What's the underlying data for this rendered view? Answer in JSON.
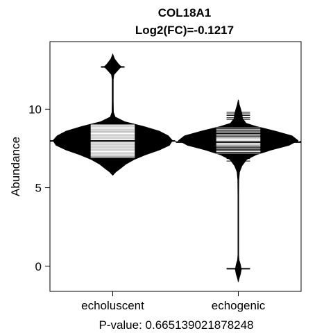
{
  "chart_data": {
    "type": "beanplot",
    "title": "COL18A1",
    "subtitle": "Log2(FC)=-0.1217",
    "ylabel": "Abundance",
    "xlabel": "P-value: 0.665139021878248",
    "ylim": [
      -1.6,
      14.3
    ],
    "yticks": [
      0,
      5,
      10
    ],
    "grid": false,
    "overall_mean": 7.95,
    "categories": [
      "echoluscent",
      "echogenic"
    ],
    "beans": [
      {
        "category": "echoluscent",
        "mean": 7.98,
        "color": "#000000",
        "density": [
          [
            5.8,
            0.0
          ],
          [
            6.0,
            0.05
          ],
          [
            6.2,
            0.12
          ],
          [
            6.5,
            0.22
          ],
          [
            6.8,
            0.36
          ],
          [
            7.1,
            0.55
          ],
          [
            7.4,
            0.78
          ],
          [
            7.7,
            0.95
          ],
          [
            8.0,
            1.0
          ],
          [
            8.3,
            0.93
          ],
          [
            8.6,
            0.78
          ],
          [
            8.9,
            0.52
          ],
          [
            9.2,
            0.2
          ],
          [
            9.5,
            0.04
          ],
          [
            9.8,
            0.012
          ],
          [
            10.5,
            0.008
          ],
          [
            11.2,
            0.008
          ],
          [
            11.9,
            0.008
          ],
          [
            12.2,
            0.02
          ],
          [
            12.5,
            0.09
          ],
          [
            12.7,
            0.14
          ],
          [
            12.9,
            0.09
          ],
          [
            13.2,
            0.03
          ],
          [
            13.5,
            0.0
          ]
        ],
        "points": [
          12.72,
          12.66,
          9.15,
          9.1,
          9.0,
          8.95,
          8.9,
          8.85,
          8.8,
          8.75,
          8.7,
          8.65,
          8.6,
          8.55,
          8.5,
          8.45,
          8.4,
          8.35,
          8.3,
          8.25,
          8.2,
          8.15,
          8.1,
          8.05,
          8.0,
          7.95,
          7.9,
          7.85,
          7.8,
          7.75,
          7.7,
          7.65,
          7.6,
          7.55,
          7.5,
          7.45,
          7.4,
          7.35,
          7.3,
          7.25,
          7.2,
          7.15,
          7.1,
          7.05,
          7.0,
          6.9,
          6.8,
          6.7
        ]
      },
      {
        "category": "echogenic",
        "mean": 7.9,
        "color": "#000000",
        "density": [
          [
            -1.0,
            0.0
          ],
          [
            -0.8,
            0.01
          ],
          [
            -0.5,
            0.035
          ],
          [
            -0.2,
            0.05
          ],
          [
            0.1,
            0.035
          ],
          [
            0.4,
            0.012
          ],
          [
            0.7,
            0.006
          ],
          [
            1.5,
            0.006
          ],
          [
            3.0,
            0.006
          ],
          [
            4.5,
            0.006
          ],
          [
            5.5,
            0.008
          ],
          [
            6.0,
            0.02
          ],
          [
            6.4,
            0.06
          ],
          [
            6.8,
            0.14
          ],
          [
            7.1,
            0.3
          ],
          [
            7.4,
            0.55
          ],
          [
            7.7,
            0.85
          ],
          [
            8.0,
            1.0
          ],
          [
            8.3,
            0.9
          ],
          [
            8.6,
            0.62
          ],
          [
            8.9,
            0.3
          ],
          [
            9.1,
            0.13
          ],
          [
            9.4,
            0.07
          ],
          [
            9.7,
            0.06
          ],
          [
            10.0,
            0.04
          ],
          [
            10.3,
            0.015
          ],
          [
            10.6,
            0.0
          ]
        ],
        "points": [
          9.8,
          9.7,
          9.6,
          9.45,
          9.35,
          9.0,
          8.9,
          8.8,
          8.7,
          8.6,
          8.5,
          8.4,
          8.3,
          8.2,
          8.15,
          8.1,
          8.05,
          8.0,
          7.95,
          7.9,
          7.85,
          7.8,
          7.75,
          7.7,
          7.6,
          7.5,
          7.4,
          7.3,
          7.2,
          7.1,
          7.0,
          6.85,
          6.7,
          -0.12,
          -0.18
        ]
      }
    ]
  }
}
